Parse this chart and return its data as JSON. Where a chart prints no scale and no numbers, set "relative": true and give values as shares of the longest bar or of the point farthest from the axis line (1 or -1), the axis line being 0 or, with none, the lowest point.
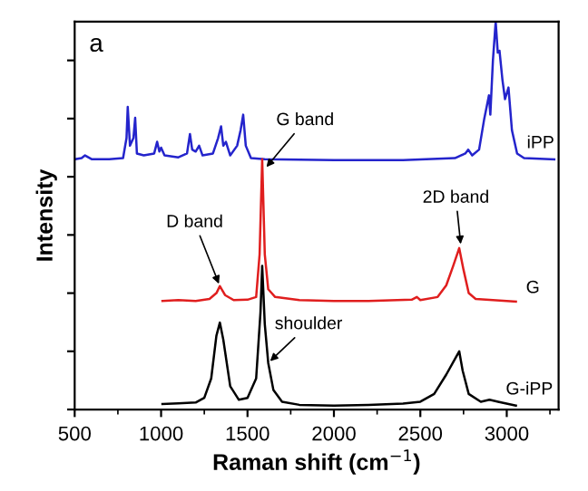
{
  "chart_data": {
    "type": "line",
    "xlabel": "Raman shift (cm$^{−1}$)",
    "ylabel": "Intensity",
    "relative": true,
    "xlim": [
      500,
      3300
    ],
    "xticks": [
      500,
      1000,
      1500,
      2000,
      2500,
      3000
    ],
    "legend": false,
    "grid": false,
    "marker": "none",
    "line_style": "solid",
    "series": [
      {
        "name": "iPP",
        "color": "#2424cc",
        "x": [
          500,
          540,
          560,
          600,
          700,
          780,
          800,
          807,
          820,
          840,
          850,
          860,
          900,
          960,
          977,
          990,
          1000,
          1020,
          1100,
          1150,
          1167,
          1180,
          1200,
          1220,
          1240,
          1300,
          1330,
          1347,
          1360,
          1375,
          1400,
          1440,
          1460,
          1475,
          1490,
          1520,
          1600,
          2000,
          2400,
          2700,
          2760,
          2777,
          2800,
          2840,
          2870,
          2897,
          2905,
          2920,
          2936,
          2948,
          2958,
          2975,
          2990,
          3010,
          3030,
          3060,
          3100,
          3275
        ],
        "values": [
          0.645,
          0.648,
          0.655,
          0.645,
          0.645,
          0.648,
          0.7,
          0.78,
          0.68,
          0.7,
          0.752,
          0.66,
          0.655,
          0.66,
          0.69,
          0.665,
          0.675,
          0.655,
          0.65,
          0.66,
          0.71,
          0.67,
          0.665,
          0.68,
          0.655,
          0.66,
          0.7,
          0.73,
          0.68,
          0.69,
          0.655,
          0.68,
          0.72,
          0.76,
          0.68,
          0.648,
          0.645,
          0.643,
          0.643,
          0.648,
          0.66,
          0.67,
          0.655,
          0.67,
          0.75,
          0.81,
          0.76,
          0.9,
          1.0,
          0.92,
          0.925,
          0.85,
          0.8,
          0.83,
          0.72,
          0.66,
          0.648,
          0.645
        ]
      },
      {
        "name": "G",
        "color": "#e01e1e",
        "x": [
          1008,
          1100,
          1200,
          1280,
          1320,
          1340,
          1370,
          1420,
          1500,
          1550,
          1570,
          1585,
          1600,
          1620,
          1660,
          1800,
          2000,
          2200,
          2450,
          2480,
          2500,
          2600,
          2650,
          2690,
          2725,
          2750,
          2780,
          2820,
          3000,
          3053
        ],
        "values": [
          0.28,
          0.282,
          0.28,
          0.285,
          0.3,
          0.318,
          0.295,
          0.282,
          0.283,
          0.29,
          0.4,
          0.645,
          0.4,
          0.31,
          0.29,
          0.282,
          0.28,
          0.28,
          0.283,
          0.29,
          0.282,
          0.29,
          0.32,
          0.37,
          0.416,
          0.36,
          0.3,
          0.285,
          0.28,
          0.278
        ]
      },
      {
        "name": "G-iPP",
        "color": "#000000",
        "x": [
          1008,
          1100,
          1200,
          1250,
          1290,
          1320,
          1340,
          1360,
          1400,
          1450,
          1500,
          1550,
          1575,
          1585,
          1600,
          1620,
          1650,
          1700,
          1800,
          2000,
          2200,
          2400,
          2500,
          2580,
          2650,
          2700,
          2725,
          2745,
          2780,
          2850,
          2900,
          2950,
          3053
        ],
        "values": [
          0.014,
          0.016,
          0.018,
          0.03,
          0.08,
          0.19,
          0.224,
          0.18,
          0.06,
          0.025,
          0.03,
          0.08,
          0.25,
          0.37,
          0.22,
          0.12,
          0.05,
          0.02,
          0.012,
          0.01,
          0.012,
          0.015,
          0.02,
          0.04,
          0.09,
          0.13,
          0.15,
          0.1,
          0.04,
          0.02,
          0.025,
          0.02,
          0.01
        ]
      }
    ],
    "annotations": [
      "a",
      {
        "text": "D band",
        "x": 1340,
        "y": 0.318
      },
      {
        "text": "G band",
        "x": 1600,
        "y": 0.62
      },
      {
        "text": "2D band",
        "x": 2735,
        "y": 0.42
      },
      {
        "text": "shoulder",
        "x": 1620,
        "y": 0.12
      }
    ]
  }
}
